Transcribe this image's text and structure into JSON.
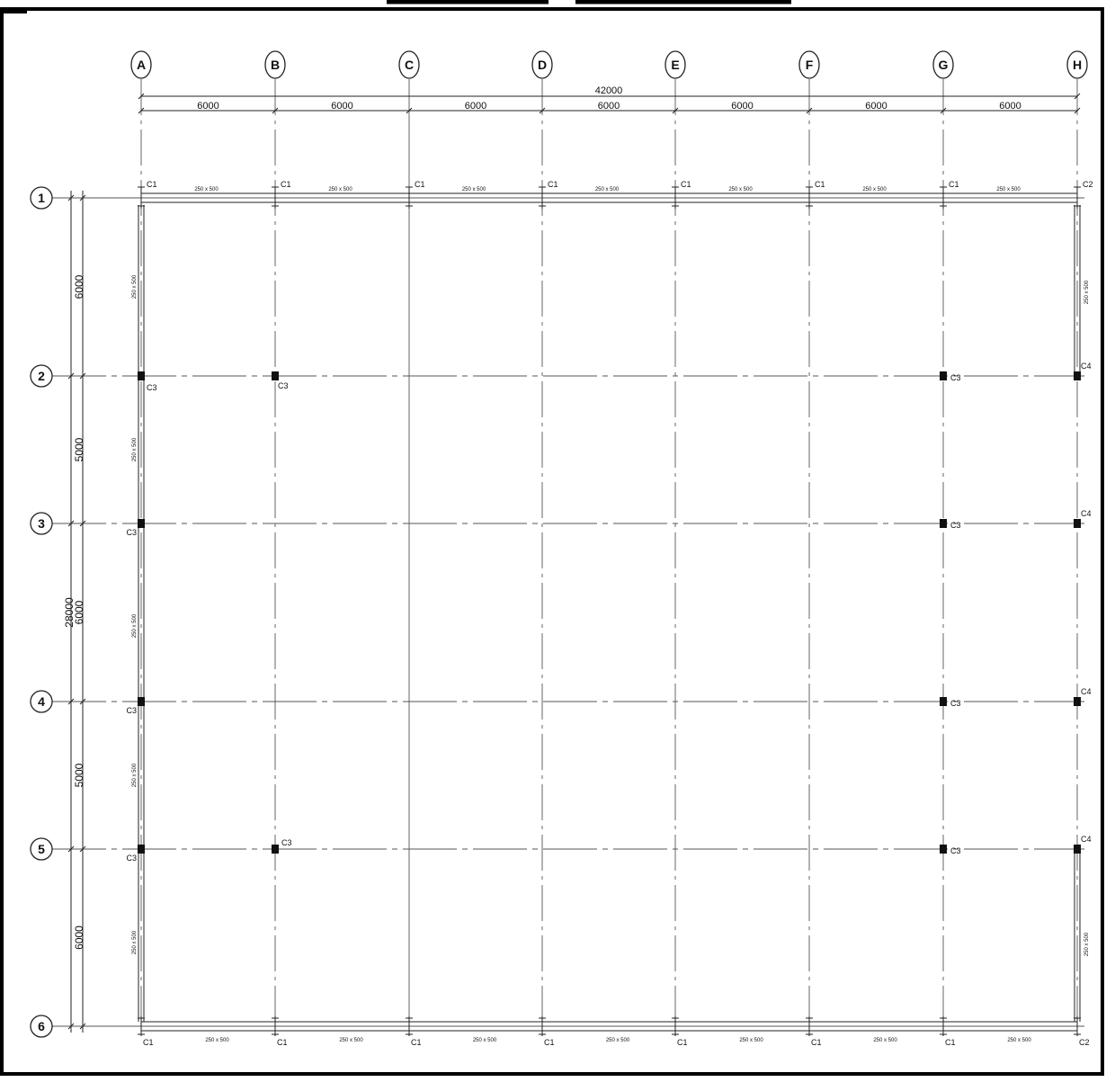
{
  "plan": {
    "grid_columns": [
      {
        "label": "A"
      },
      {
        "label": "B"
      },
      {
        "label": "C"
      },
      {
        "label": "D"
      },
      {
        "label": "E"
      },
      {
        "label": "F"
      },
      {
        "label": "G"
      },
      {
        "label": "H"
      }
    ],
    "grid_rows": [
      {
        "label": "1"
      },
      {
        "label": "2"
      },
      {
        "label": "3"
      },
      {
        "label": "4"
      },
      {
        "label": "5"
      },
      {
        "label": "6"
      }
    ],
    "overall_width_dim": "42000",
    "overall_height_dim": "28000",
    "column_span_dims": [
      "6000",
      "6000",
      "6000",
      "6000",
      "6000",
      "6000",
      "6000"
    ],
    "row_span_dims": [
      "6000",
      "5000",
      "6000",
      "5000",
      "6000"
    ],
    "beam_size": "250 x 500",
    "top_column_tags": [
      "C1",
      "C1",
      "C1",
      "C1",
      "C1",
      "C1",
      "C1",
      "C2"
    ],
    "bottom_column_tags": [
      "C1",
      "C1",
      "C1",
      "C1",
      "C1",
      "C1",
      "C1",
      "C2"
    ],
    "interior_columns": [
      {
        "col": "A",
        "row": "2",
        "tag": "C3"
      },
      {
        "col": "B",
        "row": "2",
        "tag": "C3"
      },
      {
        "col": "G",
        "row": "2",
        "tag": "C3"
      },
      {
        "col": "H",
        "row": "2",
        "tag": "C4"
      },
      {
        "col": "A",
        "row": "3",
        "tag": "C3"
      },
      {
        "col": "G",
        "row": "3",
        "tag": "C3"
      },
      {
        "col": "H",
        "row": "3",
        "tag": "C4"
      },
      {
        "col": "A",
        "row": "4",
        "tag": "C3"
      },
      {
        "col": "G",
        "row": "4",
        "tag": "C3"
      },
      {
        "col": "H",
        "row": "4",
        "tag": "C4"
      },
      {
        "col": "A",
        "row": "5",
        "tag": "C3"
      },
      {
        "col": "B",
        "row": "5",
        "tag": "C3"
      },
      {
        "col": "G",
        "row": "5",
        "tag": "C3"
      },
      {
        "col": "H",
        "row": "5",
        "tag": "C4"
      }
    ]
  }
}
